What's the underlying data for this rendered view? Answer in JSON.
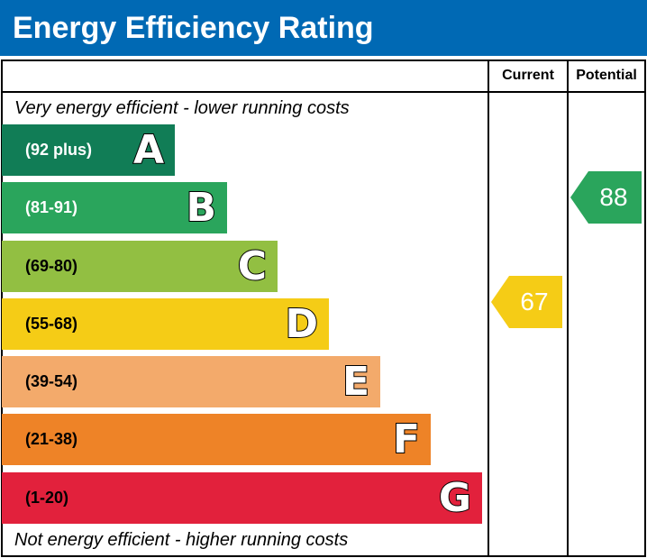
{
  "chart_data": {
    "type": "bar",
    "title": "Energy Efficiency Rating",
    "columns": [
      "Current",
      "Potential"
    ],
    "top_note": "Very energy efficient - lower running costs",
    "bottom_note": "Not energy efficient - higher running costs",
    "bands": [
      {
        "letter": "A",
        "range": "(92 plus)",
        "color": "#117d56",
        "text_color": "#ffffff"
      },
      {
        "letter": "B",
        "range": "(81-91)",
        "color": "#2aa55c",
        "text_color": "#ffffff"
      },
      {
        "letter": "C",
        "range": "(69-80)",
        "color": "#92bf42",
        "text_color": "#000000"
      },
      {
        "letter": "D",
        "range": "(55-68)",
        "color": "#f5cc16",
        "text_color": "#000000"
      },
      {
        "letter": "E",
        "range": "(39-54)",
        "color": "#f3aa6b",
        "text_color": "#000000"
      },
      {
        "letter": "F",
        "range": "(21-38)",
        "color": "#ee8327",
        "text_color": "#000000"
      },
      {
        "letter": "G",
        "range": "(1-20)",
        "color": "#e2213c",
        "text_color": "#000000"
      }
    ],
    "current": {
      "value": "67",
      "band": "D",
      "color": "#f5cc16"
    },
    "potential": {
      "value": "88",
      "band": "B",
      "color": "#2aa55c"
    }
  }
}
